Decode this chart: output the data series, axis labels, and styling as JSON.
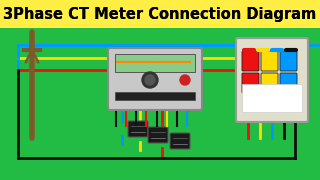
{
  "title": "3Phase CT Meter Connection Diagram",
  "title_bg": "#FFEE44",
  "title_color": "#000000",
  "title_fontsize": 10.5,
  "bg_color": "#22BB44",
  "fig_width": 3.2,
  "fig_height": 1.8,
  "dpi": 100,
  "wire_blue": "#0099FF",
  "wire_yellow": "#FFDD00",
  "wire_red": "#EE1111",
  "wire_black": "#111111",
  "wire_lw": 2.0,
  "pole_color": "#7B5B2A",
  "meter_face": "#C8C8C8",
  "meter_lcd": "#AADDAA",
  "meter_dark": "#444444",
  "panel_face": "#DDDDCC",
  "ct_face": "#1A1A1A"
}
